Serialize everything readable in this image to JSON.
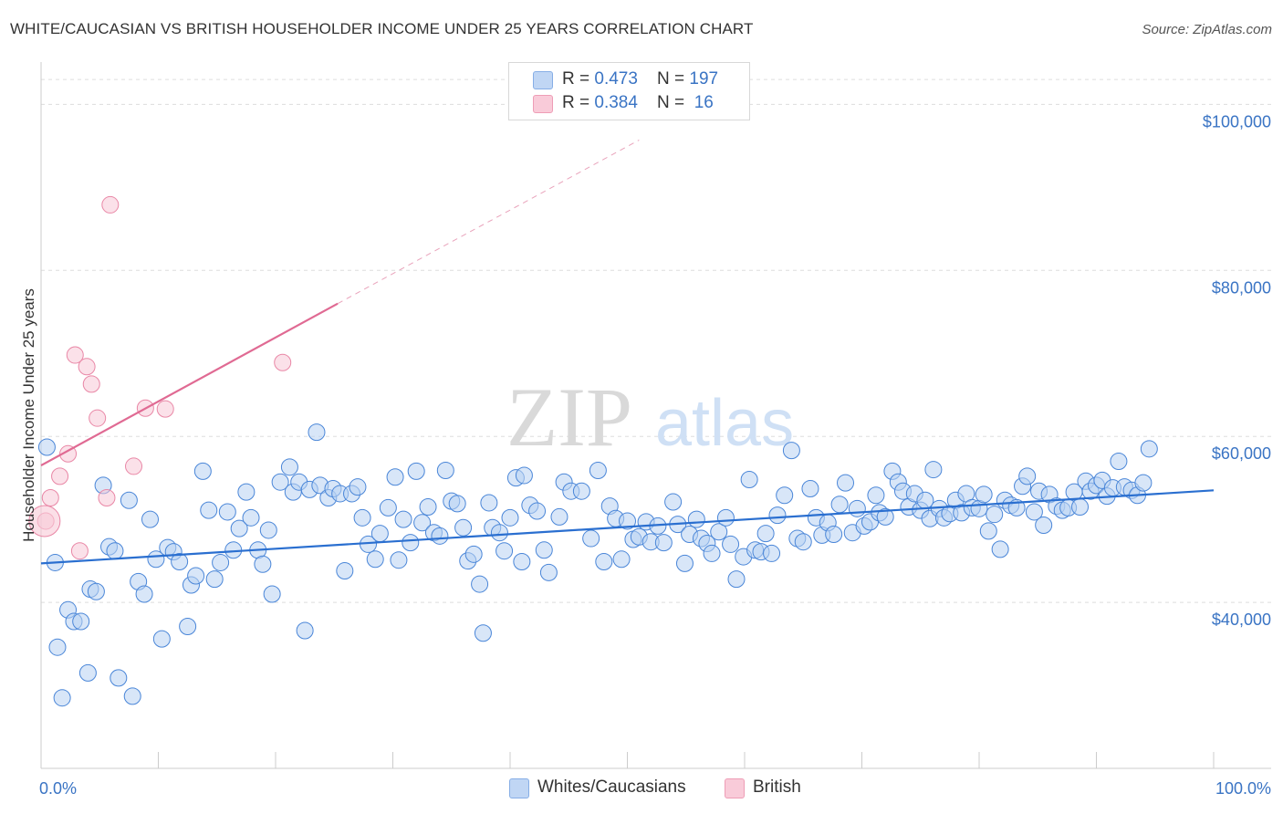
{
  "title": "WHITE/CAUCASIAN VS BRITISH HOUSEHOLDER INCOME UNDER 25 YEARS CORRELATION CHART",
  "source": "Source: ZipAtlas.com",
  "watermark": {
    "zip": "ZIP",
    "atlas": "atlas"
  },
  "legend_top": [
    {
      "r_label": "R = ",
      "r_value": "0.473",
      "n_label": "N = ",
      "n_value": "197",
      "color": "#a9c7f0"
    },
    {
      "r_label": "R = ",
      "r_value": "0.384",
      "n_label": "N = ",
      "n_value": " 16",
      "color": "#f6b8cb"
    }
  ],
  "chart_data": {
    "type": "scatter",
    "xlabel": "",
    "ylabel": "Householder Income Under 25 years",
    "x_range": [
      0,
      100
    ],
    "y_range": [
      20000,
      104000
    ],
    "x_tick_labels": [
      "0.0%",
      "100.0%"
    ],
    "y_ticks": [
      {
        "value": 40000,
        "label": "$40,000"
      },
      {
        "value": 60000,
        "label": "$60,000"
      },
      {
        "value": 80000,
        "label": "$80,000"
      },
      {
        "value": 100000,
        "label": "$100,000"
      }
    ],
    "grid": "horizontal dashed",
    "legend_position": "bottom-center",
    "series": [
      {
        "name": "Whites/Caucasians",
        "color": "#4a86d8",
        "fill": "#b8d2f2",
        "trend": {
          "x0": 0,
          "y0": 44700,
          "x1": 100,
          "y1": 53500,
          "color": "#2a6fd0"
        },
        "points": [
          [
            0.5,
            58700
          ],
          [
            1.2,
            44800
          ],
          [
            1.4,
            34600
          ],
          [
            1.8,
            28500
          ],
          [
            2.3,
            39100
          ],
          [
            2.8,
            37700
          ],
          [
            3.4,
            37700
          ],
          [
            4.0,
            31500
          ],
          [
            4.2,
            41600
          ],
          [
            4.7,
            41300
          ],
          [
            5.3,
            54100
          ],
          [
            5.8,
            46700
          ],
          [
            6.3,
            46200
          ],
          [
            6.6,
            30900
          ],
          [
            7.5,
            52300
          ],
          [
            7.8,
            28700
          ],
          [
            8.3,
            42500
          ],
          [
            8.8,
            41000
          ],
          [
            9.3,
            50000
          ],
          [
            9.8,
            45200
          ],
          [
            10.3,
            35600
          ],
          [
            10.8,
            46600
          ],
          [
            11.3,
            46100
          ],
          [
            11.8,
            44900
          ],
          [
            12.5,
            37100
          ],
          [
            12.8,
            42100
          ],
          [
            13.2,
            43200
          ],
          [
            13.8,
            55800
          ],
          [
            14.3,
            51100
          ],
          [
            14.8,
            42800
          ],
          [
            15.3,
            44800
          ],
          [
            15.9,
            50900
          ],
          [
            16.4,
            46300
          ],
          [
            16.9,
            48900
          ],
          [
            17.5,
            53300
          ],
          [
            17.9,
            50200
          ],
          [
            18.5,
            46300
          ],
          [
            18.9,
            44600
          ],
          [
            19.4,
            48700
          ],
          [
            19.7,
            41000
          ],
          [
            20.4,
            54500
          ],
          [
            21.2,
            56300
          ],
          [
            21.5,
            53300
          ],
          [
            22.0,
            54500
          ],
          [
            22.5,
            36600
          ],
          [
            22.9,
            53600
          ],
          [
            23.5,
            60500
          ],
          [
            23.8,
            54100
          ],
          [
            24.5,
            52600
          ],
          [
            24.9,
            53700
          ],
          [
            25.5,
            53100
          ],
          [
            25.9,
            43800
          ],
          [
            26.5,
            53100
          ],
          [
            27.0,
            53900
          ],
          [
            27.4,
            50200
          ],
          [
            27.9,
            47000
          ],
          [
            28.5,
            45200
          ],
          [
            28.9,
            48300
          ],
          [
            29.6,
            51400
          ],
          [
            30.2,
            55100
          ],
          [
            30.5,
            45100
          ],
          [
            30.9,
            50000
          ],
          [
            31.5,
            47200
          ],
          [
            32.0,
            55800
          ],
          [
            32.5,
            49600
          ],
          [
            33.0,
            51500
          ],
          [
            33.5,
            48400
          ],
          [
            34.0,
            48000
          ],
          [
            34.5,
            55900
          ],
          [
            35.0,
            52200
          ],
          [
            35.5,
            51900
          ],
          [
            36.0,
            49000
          ],
          [
            36.4,
            45000
          ],
          [
            36.9,
            45800
          ],
          [
            37.4,
            42200
          ],
          [
            37.7,
            36300
          ],
          [
            38.2,
            52000
          ],
          [
            38.5,
            49000
          ],
          [
            39.1,
            48400
          ],
          [
            39.5,
            46200
          ],
          [
            40.0,
            50200
          ],
          [
            40.5,
            55000
          ],
          [
            41.0,
            44900
          ],
          [
            41.2,
            55300
          ],
          [
            41.7,
            51700
          ],
          [
            42.3,
            51000
          ],
          [
            42.9,
            46300
          ],
          [
            43.3,
            43600
          ],
          [
            44.2,
            50300
          ],
          [
            44.6,
            54500
          ],
          [
            45.2,
            53400
          ],
          [
            46.1,
            53400
          ],
          [
            46.9,
            47700
          ],
          [
            47.5,
            55900
          ],
          [
            48.0,
            44900
          ],
          [
            48.5,
            51600
          ],
          [
            49.0,
            50100
          ],
          [
            49.5,
            45200
          ],
          [
            50.0,
            49800
          ],
          [
            50.5,
            47600
          ],
          [
            51.0,
            47900
          ],
          [
            51.6,
            49700
          ],
          [
            52.0,
            47300
          ],
          [
            52.6,
            49200
          ],
          [
            53.1,
            47200
          ],
          [
            53.9,
            52100
          ],
          [
            54.3,
            49400
          ],
          [
            54.9,
            44700
          ],
          [
            55.3,
            48200
          ],
          [
            55.9,
            50000
          ],
          [
            56.3,
            47700
          ],
          [
            56.8,
            47100
          ],
          [
            57.2,
            45900
          ],
          [
            57.8,
            48500
          ],
          [
            58.4,
            50200
          ],
          [
            58.8,
            47000
          ],
          [
            59.3,
            42800
          ],
          [
            59.9,
            45500
          ],
          [
            60.4,
            54800
          ],
          [
            60.9,
            46300
          ],
          [
            61.4,
            46100
          ],
          [
            61.8,
            48300
          ],
          [
            62.3,
            45900
          ],
          [
            62.8,
            50500
          ],
          [
            63.4,
            52900
          ],
          [
            64.0,
            58300
          ],
          [
            64.5,
            47700
          ],
          [
            65.0,
            47300
          ],
          [
            65.6,
            53700
          ],
          [
            66.1,
            50200
          ],
          [
            66.6,
            48100
          ],
          [
            67.1,
            49600
          ],
          [
            67.6,
            48200
          ],
          [
            68.1,
            51800
          ],
          [
            68.6,
            54400
          ],
          [
            69.2,
            48400
          ],
          [
            69.6,
            51300
          ],
          [
            70.2,
            49200
          ],
          [
            70.7,
            49700
          ],
          [
            71.2,
            52900
          ],
          [
            71.5,
            50800
          ],
          [
            72.0,
            50300
          ],
          [
            72.6,
            55800
          ],
          [
            73.1,
            54500
          ],
          [
            73.5,
            53400
          ],
          [
            74.0,
            51500
          ],
          [
            74.5,
            53100
          ],
          [
            75.0,
            51100
          ],
          [
            75.4,
            52300
          ],
          [
            75.8,
            50100
          ],
          [
            76.1,
            56000
          ],
          [
            76.6,
            51300
          ],
          [
            77.0,
            50200
          ],
          [
            77.5,
            50700
          ],
          [
            78.0,
            52300
          ],
          [
            78.5,
            50800
          ],
          [
            78.9,
            53100
          ],
          [
            79.4,
            51400
          ],
          [
            80.0,
            51300
          ],
          [
            80.4,
            53000
          ],
          [
            80.8,
            48600
          ],
          [
            81.3,
            50600
          ],
          [
            81.8,
            46400
          ],
          [
            82.2,
            52300
          ],
          [
            82.7,
            51700
          ],
          [
            83.2,
            51400
          ],
          [
            83.7,
            54000
          ],
          [
            84.1,
            55200
          ],
          [
            84.7,
            50900
          ],
          [
            85.1,
            53400
          ],
          [
            85.5,
            49300
          ],
          [
            86.0,
            53000
          ],
          [
            86.6,
            51600
          ],
          [
            87.1,
            51100
          ],
          [
            87.6,
            51400
          ],
          [
            88.1,
            53300
          ],
          [
            88.6,
            51500
          ],
          [
            89.1,
            54600
          ],
          [
            89.5,
            53400
          ],
          [
            90.0,
            54100
          ],
          [
            90.5,
            54700
          ],
          [
            90.9,
            52800
          ],
          [
            91.4,
            53800
          ],
          [
            91.9,
            57000
          ],
          [
            92.4,
            53900
          ],
          [
            93.0,
            53500
          ],
          [
            93.5,
            52900
          ],
          [
            94.0,
            54400
          ],
          [
            94.5,
            58500
          ]
        ]
      },
      {
        "name": "British",
        "color": "#e987a6",
        "fill": "#f8c9d7",
        "trend": {
          "x0": 0,
          "y0": 56500,
          "x1": 25.3,
          "y1": 76000,
          "dash_x1": 51.0,
          "dash_y1": 95700,
          "color": "#e06a93"
        },
        "points": [
          [
            0.4,
            49800
          ],
          [
            0.8,
            52600
          ],
          [
            1.6,
            55200
          ],
          [
            2.3,
            57900
          ],
          [
            2.9,
            69800
          ],
          [
            3.3,
            46200
          ],
          [
            3.9,
            68400
          ],
          [
            4.3,
            66300
          ],
          [
            4.8,
            62200
          ],
          [
            5.6,
            52600
          ],
          [
            5.9,
            87900
          ],
          [
            7.9,
            56400
          ],
          [
            8.9,
            63400
          ],
          [
            10.6,
            63300
          ],
          [
            20.6,
            68900
          ]
        ]
      }
    ]
  }
}
